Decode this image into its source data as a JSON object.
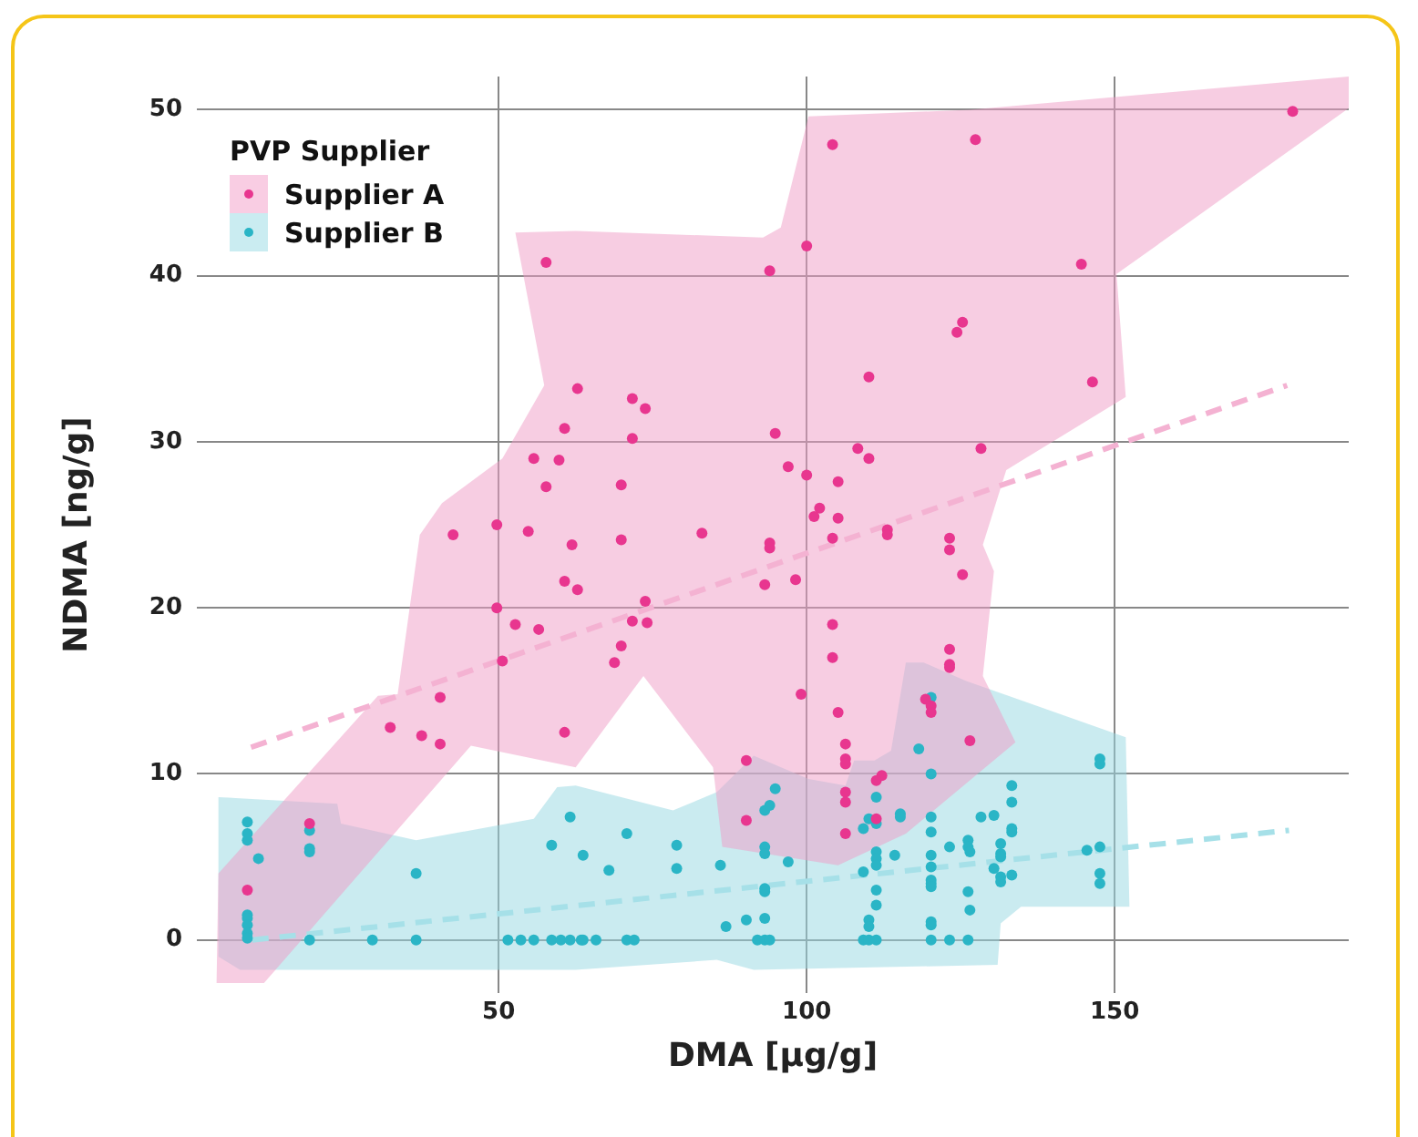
{
  "chart_data": {
    "type": "scatter",
    "xlabel": "DMA [µg/g]",
    "ylabel": "NDMA [ng/g]",
    "legend_title": "PVP Supplier",
    "legend": "top left",
    "grid": true,
    "marker": "circle",
    "xlim": [
      1,
      188
    ],
    "ylim": [
      -3.2,
      52
    ],
    "xticks": [
      50,
      100,
      150
    ],
    "yticks": [
      0,
      10,
      20,
      30,
      40,
      50
    ],
    "series": [
      {
        "type": "area",
        "marker": "none",
        "color": "#f09cc6",
        "x": [
          4.2,
          4.5,
          30.4,
          33.6,
          37.2,
          40.8,
          50.6,
          57.4,
          52.7,
          62.5,
          92.9,
          95.8,
          100.3,
          126.5,
          188,
          188,
          150.3,
          151.8,
          132.4,
          128.6,
          130.4,
          128.6,
          133.9,
          116.1,
          105.1,
          86.3,
          84.8,
          73.5,
          62.5,
          45.5,
          11.9
        ],
        "values": [
          -2.6,
          4.0,
          14.7,
          14.8,
          24.4,
          26.3,
          29.0,
          33.4,
          42.6,
          42.7,
          42.3,
          42.9,
          49.6,
          50.0,
          52.0,
          50.1,
          40.1,
          32.7,
          28.3,
          23.8,
          22.2,
          15.9,
          11.9,
          6.4,
          4.5,
          5.6,
          10.4,
          15.9,
          10.4,
          11.7,
          -2.6
        ]
      },
      {
        "type": "area",
        "marker": "none",
        "color": "#96d8e2",
        "x": [
          4.5,
          23.8,
          24.4,
          36.6,
          55.7,
          59.5,
          62.5,
          78.3,
          85.4,
          91.4,
          100.3,
          106.3,
          107.7,
          111,
          113.7,
          116.1,
          119,
          125.9,
          151.8,
          152.4,
          134.8,
          131.5,
          131,
          91.4,
          85.4,
          62.5,
          8,
          4.5
        ],
        "values": [
          8.6,
          8.2,
          7.0,
          6.0,
          7.3,
          9.2,
          9.3,
          7.8,
          8.9,
          11.1,
          9.7,
          9.3,
          10.8,
          10.8,
          11.4,
          16.7,
          16.7,
          15.6,
          12.2,
          2.0,
          2.0,
          1.0,
          -1.5,
          -1.8,
          -1.2,
          -1.8,
          -1.8,
          -1.0
        ]
      },
      {
        "type": "line",
        "marker": "none",
        "color": "#f4b2d2",
        "line_style": "dashed",
        "x": [
          9.8,
          178
        ],
        "values": [
          11.6,
          33.4
        ]
      },
      {
        "type": "line",
        "marker": "none",
        "color": "#a6e0e8",
        "line_style": "dashed",
        "x": [
          10,
          178.3
        ],
        "values": [
          0,
          6.6
        ]
      },
      {
        "name": "Supplier A",
        "color": "#e8368f",
        "x": [
          9.2,
          19.3,
          32.4,
          37.5,
          40.5,
          40.5,
          50.6,
          49.7,
          52.7,
          56.5,
          60.7,
          60.7,
          62.8,
          61.9,
          57.7,
          62.8,
          60.7,
          55.7,
          59.8,
          57.7,
          42.6,
          49.7,
          54.8,
          104.2,
          100,
          94.0,
          125.3,
          124.4,
          110.1,
          71.7,
          73.8,
          71.7,
          94.9,
          108.3,
          110.1,
          97.0,
          100,
          105.1,
          69.9,
          102.1,
          101.2,
          105.1,
          113.1,
          113.1,
          123.2,
          69.9,
          83.0,
          104.2,
          94.0,
          127.4,
          178.9,
          144.6,
          146.4,
          128.3,
          94.0,
          123.2,
          125.3,
          73.8,
          71.7,
          74.1,
          93.2,
          98.2,
          69.9,
          68.8,
          104.2,
          104.2,
          123.2,
          123.2,
          123.2,
          99.1,
          105.1,
          119.3,
          120.2,
          120.2,
          106.3,
          106.3,
          106.3,
          112.2,
          111.3,
          90.2,
          106.3,
          106.3,
          90.2,
          106.3,
          111.3,
          126.5
        ],
        "values": [
          3.0,
          7.0,
          12.8,
          12.3,
          11.8,
          14.6,
          16.8,
          20.0,
          19.0,
          18.7,
          12.5,
          21.6,
          21.1,
          23.8,
          40.8,
          33.2,
          30.8,
          29.0,
          28.9,
          27.3,
          24.4,
          25.0,
          24.6,
          47.9,
          41.8,
          40.3,
          37.2,
          36.6,
          33.9,
          32.6,
          32.0,
          30.2,
          30.5,
          29.6,
          29.0,
          28.5,
          28.0,
          27.6,
          27.4,
          26.0,
          25.5,
          25.4,
          24.7,
          24.4,
          24.2,
          24.1,
          24.5,
          24.2,
          23.9,
          48.2,
          49.9,
          40.7,
          33.6,
          29.6,
          23.6,
          23.5,
          22.0,
          20.4,
          19.2,
          19.1,
          21.4,
          21.7,
          17.7,
          16.7,
          19.0,
          17.0,
          17.5,
          16.6,
          16.4,
          14.8,
          13.7,
          14.5,
          14.1,
          13.7,
          11.8,
          10.9,
          10.6,
          9.9,
          9.6,
          10.8,
          8.9,
          8.3,
          7.2,
          6.4,
          7.3,
          12.0
        ]
      },
      {
        "name": "Supplier B",
        "color": "#2ab5c6",
        "x": [
          9.2,
          9.2,
          9.2,
          9.2,
          9.2,
          9.2,
          9.2,
          9.2,
          11.0,
          19.3,
          19.3,
          19.3,
          19.3,
          29.5,
          36.6,
          36.6,
          51.5,
          53.6,
          55.7,
          58.6,
          60.1,
          61.6,
          63.4,
          58.6,
          61.6,
          63.7,
          63.7,
          65.8,
          70.8,
          72.0,
          70.8,
          67.9,
          78.9,
          78.9,
          86.0,
          86.9,
          90.2,
          92.0,
          93.2,
          94.0,
          93.2,
          93.2,
          93.2,
          93.2,
          93.2,
          93.2,
          94.0,
          94.9,
          97.0,
          109.2,
          110.1,
          111.3,
          110.1,
          110.1,
          111.3,
          111.3,
          109.2,
          111.3,
          111.3,
          111.3,
          109.2,
          110.1,
          111.3,
          111.3,
          114.3,
          115.2,
          115.2,
          118.2,
          120.2,
          120.2,
          120.2,
          120.2,
          120.2,
          120.2,
          120.2,
          120.2,
          120.2,
          120.2,
          120.2,
          120.2,
          123.2,
          123.2,
          126.2,
          126.2,
          126.2,
          126.2,
          128.3,
          130.4,
          133.3,
          133.3,
          133.3,
          133.3,
          126.5,
          131.5,
          131.5,
          131.5,
          130.4,
          131.5,
          131.5,
          133.3,
          126.5,
          145.5,
          147.6,
          147.6,
          147.6,
          147.6,
          147.6
        ],
        "values": [
          7.1,
          6.4,
          6.0,
          1.5,
          1.3,
          0.9,
          0.4,
          0.1,
          4.9,
          6.6,
          5.5,
          5.3,
          0,
          0,
          4.0,
          0,
          0,
          0,
          0,
          0,
          0,
          0,
          0,
          5.7,
          7.4,
          5.1,
          0,
          0,
          0,
          0,
          6.4,
          4.2,
          5.7,
          4.3,
          4.5,
          0.8,
          1.2,
          0,
          0,
          0,
          1.3,
          2.9,
          3.1,
          5.6,
          5.2,
          7.8,
          8.1,
          9.1,
          4.7,
          0,
          0,
          0,
          1.2,
          0.8,
          3.0,
          2.1,
          4.1,
          5.3,
          4.9,
          4.5,
          6.7,
          7.3,
          7.0,
          8.6,
          5.1,
          7.6,
          7.4,
          11.5,
          14.6,
          10.0,
          7.4,
          6.5,
          5.1,
          4.4,
          3.6,
          3.4,
          3.2,
          1.1,
          0.9,
          0,
          5.6,
          0,
          6.0,
          5.6,
          2.9,
          0,
          7.4,
          7.5,
          9.3,
          8.3,
          6.7,
          6.5,
          5.3,
          5.8,
          5.2,
          5.0,
          4.3,
          3.8,
          3.5,
          3.9,
          1.8,
          5.4,
          5.6,
          10.9,
          10.6,
          4.0,
          3.4
        ]
      }
    ]
  }
}
